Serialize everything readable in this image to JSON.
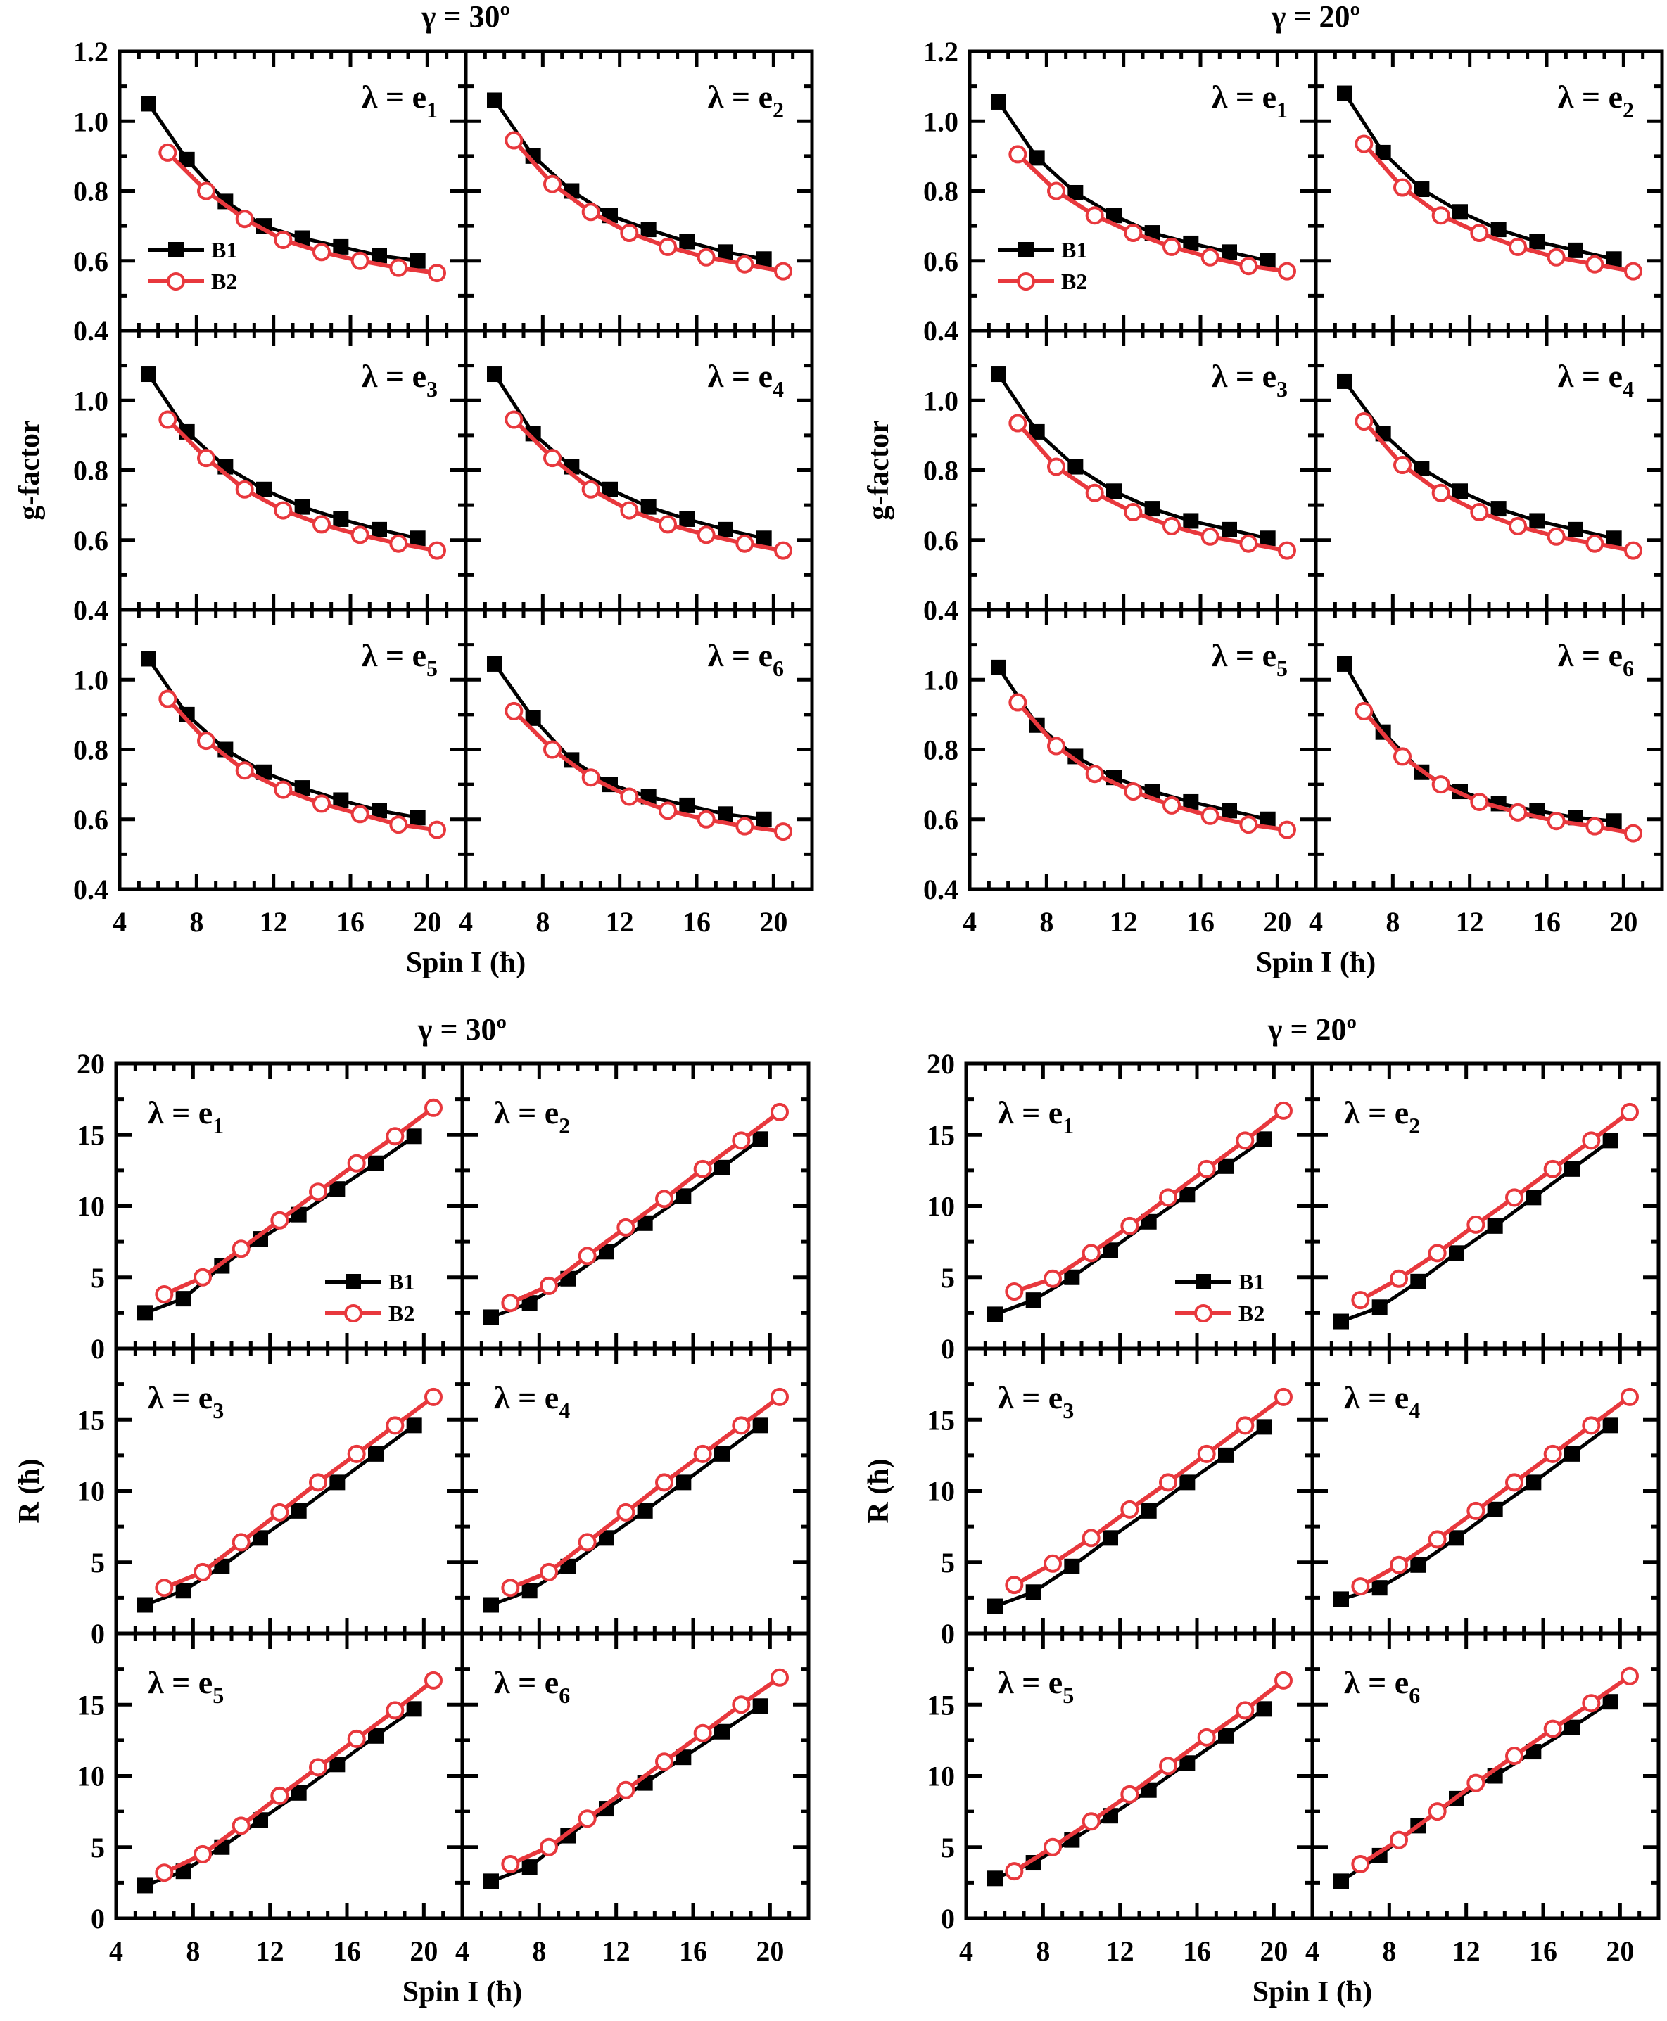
{
  "chart_data": [
    {
      "type": "line",
      "id": "g-30",
      "title": "γ = 30º",
      "xlabel": "Spin I (ħ)",
      "ylabel": "g-factor",
      "xlim": [
        4,
        22
      ],
      "ylim": [
        0.4,
        1.2
      ],
      "xticks": [
        4,
        8,
        12,
        16,
        20
      ],
      "yticks": [
        "0.4",
        "0.6",
        "0.8",
        "1.0",
        "1.2"
      ],
      "grid": false,
      "legend": {
        "panel": 0,
        "position": "bottom-left",
        "entries": [
          "B1",
          "B2"
        ]
      },
      "panels": [
        {
          "label": "λ = e",
          "sub": "1",
          "B1": [
            1.05,
            0.89,
            0.77,
            0.7,
            0.665,
            0.64,
            0.615,
            0.6
          ],
          "B2": [
            0.91,
            0.8,
            0.72,
            0.66,
            0.625,
            0.6,
            0.58,
            0.565
          ]
        },
        {
          "label": "λ = e",
          "sub": "2",
          "B1": [
            1.06,
            0.9,
            0.8,
            0.73,
            0.69,
            0.655,
            0.625,
            0.605
          ],
          "B2": [
            0.945,
            0.82,
            0.74,
            0.68,
            0.64,
            0.61,
            0.59,
            0.57
          ]
        },
        {
          "label": "λ = e",
          "sub": "3",
          "B1": [
            1.075,
            0.91,
            0.81,
            0.745,
            0.695,
            0.66,
            0.63,
            0.605
          ],
          "B2": [
            0.945,
            0.835,
            0.745,
            0.685,
            0.645,
            0.615,
            0.59,
            0.57
          ]
        },
        {
          "label": "λ = e",
          "sub": "4",
          "B1": [
            1.075,
            0.905,
            0.81,
            0.745,
            0.695,
            0.66,
            0.63,
            0.605
          ],
          "B2": [
            0.945,
            0.835,
            0.745,
            0.685,
            0.645,
            0.615,
            0.59,
            0.57
          ]
        },
        {
          "label": "λ = e",
          "sub": "5",
          "B1": [
            1.06,
            0.9,
            0.8,
            0.735,
            0.69,
            0.655,
            0.625,
            0.605
          ],
          "B2": [
            0.945,
            0.825,
            0.74,
            0.685,
            0.645,
            0.615,
            0.585,
            0.57
          ]
        },
        {
          "label": "λ = e",
          "sub": "6",
          "B1": [
            1.045,
            0.89,
            0.77,
            0.7,
            0.665,
            0.64,
            0.615,
            0.6
          ],
          "B2": [
            0.91,
            0.8,
            0.72,
            0.665,
            0.625,
            0.6,
            0.58,
            0.565
          ]
        }
      ]
    },
    {
      "type": "line",
      "id": "g-20",
      "title": "γ = 20º",
      "xlabel": "Spin I (ħ)",
      "ylabel": "g-factor",
      "xlim": [
        4,
        22
      ],
      "ylim": [
        0.4,
        1.2
      ],
      "xticks": [
        4,
        8,
        12,
        16,
        20
      ],
      "yticks": [
        "0.4",
        "0.6",
        "0.8",
        "1.0",
        "1.2"
      ],
      "grid": false,
      "legend": {
        "panel": 0,
        "position": "bottom-left",
        "entries": [
          "B1",
          "B2"
        ]
      },
      "panels": [
        {
          "label": "λ = e",
          "sub": "1",
          "B1": [
            1.055,
            0.895,
            0.795,
            0.73,
            0.68,
            0.65,
            0.625,
            0.6
          ],
          "B2": [
            0.905,
            0.8,
            0.73,
            0.68,
            0.64,
            0.61,
            0.585,
            0.57
          ]
        },
        {
          "label": "λ = e",
          "sub": "2",
          "B1": [
            1.08,
            0.91,
            0.805,
            0.74,
            0.69,
            0.655,
            0.63,
            0.605
          ],
          "B2": [
            0.935,
            0.81,
            0.73,
            0.68,
            0.64,
            0.61,
            0.59,
            0.57
          ]
        },
        {
          "label": "λ = e",
          "sub": "3",
          "B1": [
            1.075,
            0.91,
            0.81,
            0.74,
            0.69,
            0.655,
            0.63,
            0.605
          ],
          "B2": [
            0.935,
            0.81,
            0.735,
            0.68,
            0.64,
            0.61,
            0.59,
            0.57
          ]
        },
        {
          "label": "λ = e",
          "sub": "4",
          "B1": [
            1.055,
            0.905,
            0.805,
            0.74,
            0.69,
            0.655,
            0.63,
            0.605
          ],
          "B2": [
            0.94,
            0.815,
            0.735,
            0.68,
            0.64,
            0.61,
            0.59,
            0.57
          ]
        },
        {
          "label": "λ = e",
          "sub": "5",
          "B1": [
            1.035,
            0.87,
            0.78,
            0.72,
            0.68,
            0.65,
            0.625,
            0.6
          ],
          "B2": [
            0.935,
            0.81,
            0.73,
            0.68,
            0.64,
            0.61,
            0.585,
            0.57
          ]
        },
        {
          "label": "λ = e",
          "sub": "6",
          "B1": [
            1.045,
            0.85,
            0.735,
            0.68,
            0.645,
            0.625,
            0.605,
            0.595
          ],
          "B2": [
            0.91,
            0.78,
            0.7,
            0.65,
            0.62,
            0.595,
            0.58,
            0.56
          ]
        }
      ]
    },
    {
      "type": "line",
      "id": "r-30",
      "title": "γ = 30º",
      "xlabel": "Spin I (ħ)",
      "ylabel": "R (ħ)",
      "xlim": [
        4,
        22
      ],
      "ylim": [
        0,
        20
      ],
      "xticks": [
        4,
        8,
        12,
        16,
        20
      ],
      "yticks": [
        "0",
        "5",
        "10",
        "15",
        "20"
      ],
      "grid": false,
      "legend": {
        "panel": 0,
        "position": "bottom-right",
        "entries": [
          "B1",
          "B2"
        ]
      },
      "panels": [
        {
          "label": "λ = e",
          "sub": "1",
          "B1": [
            2.5,
            3.5,
            5.8,
            7.7,
            9.4,
            11.2,
            13.0,
            14.9
          ],
          "B2": [
            3.8,
            5.0,
            7.0,
            9.0,
            11.0,
            13.0,
            14.9,
            16.9
          ]
        },
        {
          "label": "λ = e",
          "sub": "2",
          "B1": [
            2.2,
            3.2,
            4.9,
            6.8,
            8.8,
            10.7,
            12.7,
            14.7
          ],
          "B2": [
            3.2,
            4.4,
            6.5,
            8.5,
            10.5,
            12.6,
            14.6,
            16.6
          ]
        },
        {
          "label": "λ = e",
          "sub": "3",
          "B1": [
            2.0,
            3.0,
            4.7,
            6.7,
            8.6,
            10.6,
            12.6,
            14.6
          ],
          "B2": [
            3.2,
            4.3,
            6.4,
            8.5,
            10.6,
            12.6,
            14.6,
            16.6
          ]
        },
        {
          "label": "λ = e",
          "sub": "4",
          "B1": [
            2.0,
            3.0,
            4.7,
            6.7,
            8.6,
            10.6,
            12.6,
            14.6
          ],
          "B2": [
            3.2,
            4.3,
            6.4,
            8.5,
            10.6,
            12.6,
            14.6,
            16.6
          ]
        },
        {
          "label": "λ = e",
          "sub": "5",
          "B1": [
            2.3,
            3.3,
            5.0,
            6.9,
            8.8,
            10.8,
            12.8,
            14.7
          ],
          "B2": [
            3.2,
            4.5,
            6.5,
            8.6,
            10.6,
            12.6,
            14.6,
            16.7
          ]
        },
        {
          "label": "λ = e",
          "sub": "6",
          "B1": [
            2.6,
            3.6,
            5.8,
            7.7,
            9.5,
            11.3,
            13.1,
            14.9
          ],
          "B2": [
            3.8,
            5.0,
            7.0,
            9.0,
            11.0,
            13.0,
            15.0,
            16.9
          ]
        }
      ]
    },
    {
      "type": "line",
      "id": "r-20",
      "title": "γ = 20º",
      "xlabel": "Spin I (ħ)",
      "ylabel": "R (ħ)",
      "xlim": [
        4,
        22
      ],
      "ylim": [
        0,
        20
      ],
      "xticks": [
        4,
        8,
        12,
        16,
        20
      ],
      "yticks": [
        "0",
        "5",
        "10",
        "15",
        "20"
      ],
      "grid": false,
      "legend": {
        "panel": 0,
        "position": "bottom-right",
        "entries": [
          "B1",
          "B2"
        ]
      },
      "panels": [
        {
          "label": "λ = e",
          "sub": "1",
          "B1": [
            2.4,
            3.4,
            5.0,
            6.9,
            8.9,
            10.8,
            12.8,
            14.7
          ],
          "B2": [
            4.0,
            4.9,
            6.7,
            8.6,
            10.6,
            12.6,
            14.6,
            16.7
          ]
        },
        {
          "label": "λ = e",
          "sub": "2",
          "B1": [
            1.9,
            2.9,
            4.7,
            6.7,
            8.6,
            10.6,
            12.6,
            14.6
          ],
          "B2": [
            3.4,
            4.9,
            6.7,
            8.7,
            10.6,
            12.6,
            14.6,
            16.6
          ]
        },
        {
          "label": "λ = e",
          "sub": "3",
          "B1": [
            1.9,
            2.9,
            4.7,
            6.7,
            8.6,
            10.6,
            12.5,
            14.5
          ],
          "B2": [
            3.4,
            4.9,
            6.7,
            8.7,
            10.6,
            12.6,
            14.6,
            16.6
          ]
        },
        {
          "label": "λ = e",
          "sub": "4",
          "B1": [
            2.4,
            3.2,
            4.8,
            6.7,
            8.7,
            10.6,
            12.6,
            14.6
          ],
          "B2": [
            3.3,
            4.8,
            6.6,
            8.6,
            10.6,
            12.6,
            14.6,
            16.6
          ]
        },
        {
          "label": "λ = e",
          "sub": "5",
          "B1": [
            2.8,
            3.9,
            5.5,
            7.2,
            9.0,
            10.9,
            12.8,
            14.7
          ],
          "B2": [
            3.3,
            5.0,
            6.8,
            8.7,
            10.7,
            12.7,
            14.6,
            16.7
          ]
        },
        {
          "label": "λ = e",
          "sub": "6",
          "B1": [
            2.6,
            4.4,
            6.5,
            8.4,
            10.0,
            11.7,
            13.4,
            15.2
          ],
          "B2": [
            3.8,
            5.5,
            7.5,
            9.5,
            11.4,
            13.3,
            15.1,
            17.0
          ]
        }
      ]
    }
  ],
  "series_meta": {
    "B1": {
      "name": "B1",
      "color": "#000000",
      "marker": "filled-square",
      "x": [
        5.5,
        7.5,
        9.5,
        11.5,
        13.5,
        15.5,
        17.5,
        19.5
      ]
    },
    "B2": {
      "name": "B2",
      "color": "#e8383d",
      "marker": "open-circle",
      "x": [
        6.5,
        8.5,
        10.5,
        12.5,
        14.5,
        16.5,
        18.5,
        20.5
      ]
    }
  }
}
